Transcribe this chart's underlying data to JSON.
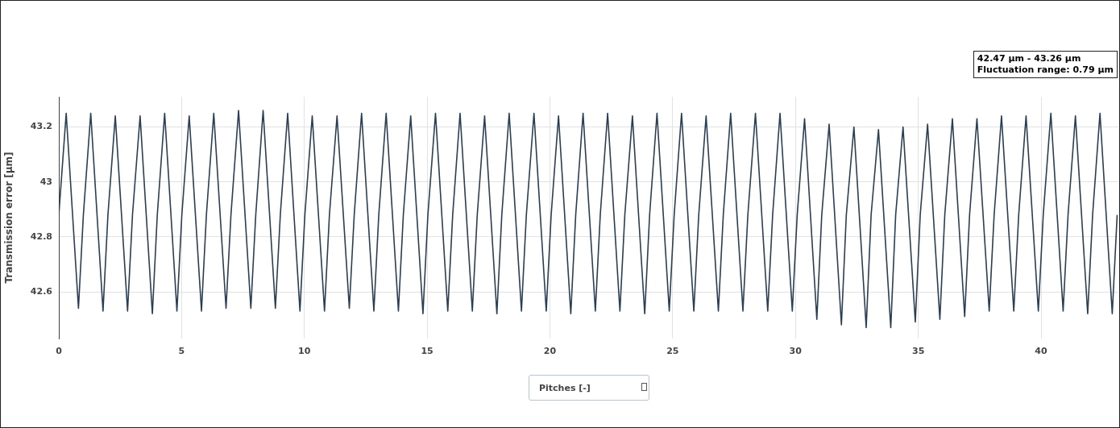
{
  "chart_data": {
    "type": "line",
    "ylabel": "Transmission error [µm]",
    "xlabel": "Pitches [-]",
    "annotations": [
      "42.47 µm - 43.26 µm",
      "Fluctuation range: 0.79 µm"
    ],
    "x": [
      0,
      0.3,
      0.8,
      1.0,
      1.3,
      1.8,
      2.0,
      2.3,
      2.8,
      3.0,
      3.31,
      3.81,
      4.01,
      4.31,
      4.81,
      5.01,
      5.31,
      5.81,
      6.01,
      6.31,
      6.81,
      7.01,
      7.32,
      7.82,
      8.02,
      8.32,
      8.82,
      9.02,
      9.32,
      9.82,
      10.02,
      10.32,
      10.82,
      11.02,
      11.33,
      11.83,
      12.03,
      12.33,
      12.83,
      13.03,
      13.33,
      13.83,
      14.03,
      14.33,
      14.83,
      15.03,
      15.34,
      15.84,
      16.04,
      16.34,
      16.84,
      17.04,
      17.34,
      17.84,
      18.04,
      18.34,
      18.84,
      19.04,
      19.35,
      19.85,
      20.05,
      20.35,
      20.85,
      21.05,
      21.35,
      21.85,
      22.05,
      22.35,
      22.85,
      23.05,
      23.36,
      23.86,
      24.06,
      24.36,
      24.86,
      25.06,
      25.36,
      25.86,
      26.06,
      26.36,
      26.86,
      27.06,
      27.36,
      27.86,
      28.06,
      28.37,
      28.87,
      29.07,
      29.37,
      29.87,
      30.07,
      30.37,
      30.87,
      31.07,
      31.37,
      31.87,
      32.07,
      32.38,
      32.88,
      33.08,
      33.38,
      33.88,
      34.08,
      34.38,
      34.88,
      35.08,
      35.38,
      35.88,
      36.08,
      36.39,
      36.89,
      37.09,
      37.39,
      37.89,
      38.09,
      38.39,
      38.89,
      39.09,
      39.39,
      39.89,
      40.09,
      40.4,
      40.9,
      41.1,
      41.4,
      41.9,
      42.1,
      42.4,
      42.9,
      43.1
    ],
    "series": [
      {
        "color": "#2a3f54",
        "values": [
          42.88,
          43.25,
          42.54,
          42.88,
          43.25,
          42.53,
          42.88,
          43.24,
          42.53,
          42.88,
          43.24,
          42.52,
          42.88,
          43.25,
          42.53,
          42.88,
          43.24,
          42.53,
          42.88,
          43.25,
          42.54,
          42.88,
          43.26,
          42.54,
          42.88,
          43.26,
          42.54,
          42.88,
          43.25,
          42.53,
          42.88,
          43.24,
          42.53,
          42.88,
          43.24,
          42.54,
          42.88,
          43.25,
          42.53,
          42.88,
          43.25,
          42.53,
          42.88,
          43.24,
          42.52,
          42.88,
          43.25,
          42.53,
          42.88,
          43.25,
          42.53,
          42.88,
          43.24,
          42.52,
          42.88,
          43.25,
          42.53,
          42.88,
          43.25,
          42.53,
          42.88,
          43.24,
          42.52,
          42.88,
          43.25,
          42.53,
          42.88,
          43.25,
          42.53,
          42.88,
          43.24,
          42.52,
          42.88,
          43.25,
          42.53,
          42.88,
          43.25,
          42.53,
          42.88,
          43.24,
          42.53,
          42.88,
          43.25,
          42.53,
          42.88,
          43.25,
          42.53,
          42.88,
          43.25,
          42.53,
          42.88,
          43.23,
          42.5,
          42.88,
          43.21,
          42.48,
          42.88,
          43.2,
          42.47,
          42.88,
          43.19,
          42.47,
          42.88,
          43.2,
          42.49,
          42.88,
          43.21,
          42.5,
          42.88,
          43.23,
          42.51,
          42.88,
          43.23,
          42.53,
          42.88,
          43.24,
          42.53,
          42.88,
          43.24,
          42.53,
          42.88,
          43.25,
          42.53,
          42.88,
          43.24,
          42.52,
          42.88,
          43.25,
          42.52,
          42.88
        ]
      }
    ],
    "xlim": [
      0,
      43.15
    ],
    "ylim": [
      42.43,
      43.31
    ],
    "xticks": [
      0,
      5,
      10,
      15,
      20,
      25,
      30,
      35,
      40
    ],
    "yticks": [
      42.6,
      42.8,
      43,
      43.2
    ],
    "grid": true,
    "legend": false,
    "marker": "none",
    "line_style": "solid"
  }
}
